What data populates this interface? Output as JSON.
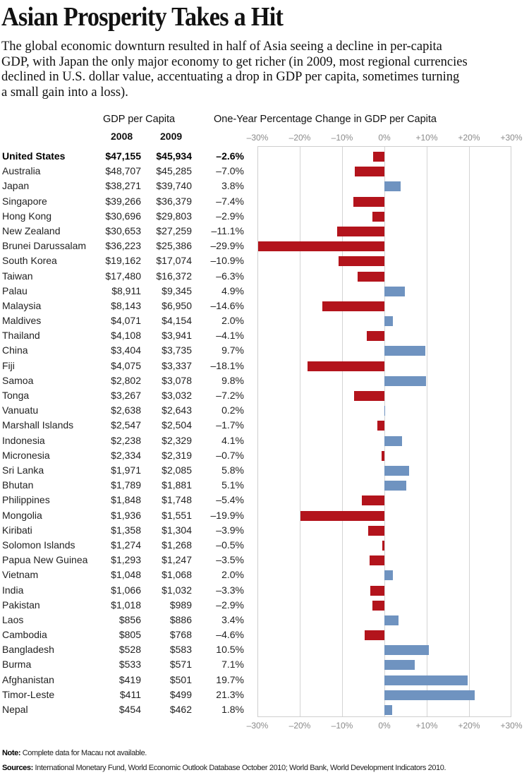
{
  "title": "Asian Prosperity Takes a Hit",
  "subtitle_lines": [
    "The global economic downturn resulted in half of Asia seeing a decline in per-capita",
    "GDP, with Japan the only major economy to get richer (in 2009, most regional currencies",
    "declined in U.S. dollar value, accentuating a drop in GDP per capita, sometimes turning",
    "a small gain into a loss)."
  ],
  "headers": {
    "gdp": "GDP per Capita",
    "y2008": "2008",
    "y2009": "2009",
    "change": "One-Year Percentage Change in GDP per Capita"
  },
  "colors": {
    "negative": "#b3141c",
    "positive": "#6f93c0"
  },
  "chart_data": {
    "type": "bar",
    "orientation": "horizontal",
    "xlim": [
      -30,
      30
    ],
    "xticks": [
      "–30%",
      "–20%",
      "–10%",
      "0%",
      "+10%",
      "+20%",
      "+30%"
    ],
    "grid": true,
    "rows": [
      {
        "country": "United States",
        "gdp2008": "$47,155",
        "gdp2009": "$45,934",
        "change_label": "–2.6%",
        "change": -2.6,
        "bold": true
      },
      {
        "country": "Australia",
        "gdp2008": "$48,707",
        "gdp2009": "$45,285",
        "change_label": "–7.0%",
        "change": -7.0
      },
      {
        "country": "Japan",
        "gdp2008": "$38,271",
        "gdp2009": "$39,740",
        "change_label": "3.8%",
        "change": 3.8
      },
      {
        "country": "Singapore",
        "gdp2008": "$39,266",
        "gdp2009": "$36,379",
        "change_label": "–7.4%",
        "change": -7.4
      },
      {
        "country": "Hong Kong",
        "gdp2008": "$30,696",
        "gdp2009": "$29,803",
        "change_label": "–2.9%",
        "change": -2.9
      },
      {
        "country": "New Zealand",
        "gdp2008": "$30,653",
        "gdp2009": "$27,259",
        "change_label": "–11.1%",
        "change": -11.1
      },
      {
        "country": "Brunei Darussalam",
        "gdp2008": "$36,223",
        "gdp2009": "$25,386",
        "change_label": "–29.9%",
        "change": -29.9
      },
      {
        "country": "South Korea",
        "gdp2008": "$19,162",
        "gdp2009": "$17,074",
        "change_label": "–10.9%",
        "change": -10.9
      },
      {
        "country": "Taiwan",
        "gdp2008": "$17,480",
        "gdp2009": "$16,372",
        "change_label": "–6.3%",
        "change": -6.3
      },
      {
        "country": "Palau",
        "gdp2008": "$8,911",
        "gdp2009": "$9,345",
        "change_label": "4.9%",
        "change": 4.9
      },
      {
        "country": "Malaysia",
        "gdp2008": "$8,143",
        "gdp2009": "$6,950",
        "change_label": "–14.6%",
        "change": -14.6
      },
      {
        "country": "Maldives",
        "gdp2008": "$4,071",
        "gdp2009": "$4,154",
        "change_label": "2.0%",
        "change": 2.0
      },
      {
        "country": "Thailand",
        "gdp2008": "$4,108",
        "gdp2009": "$3,941",
        "change_label": "–4.1%",
        "change": -4.1
      },
      {
        "country": "China",
        "gdp2008": "$3,404",
        "gdp2009": "$3,735",
        "change_label": "9.7%",
        "change": 9.7
      },
      {
        "country": "Fiji",
        "gdp2008": "$4,075",
        "gdp2009": "$3,337",
        "change_label": "–18.1%",
        "change": -18.1
      },
      {
        "country": "Samoa",
        "gdp2008": "$2,802",
        "gdp2009": "$3,078",
        "change_label": "9.8%",
        "change": 9.8
      },
      {
        "country": "Tonga",
        "gdp2008": "$3,267",
        "gdp2009": "$3,032",
        "change_label": "–7.2%",
        "change": -7.2
      },
      {
        "country": "Vanuatu",
        "gdp2008": "$2,638",
        "gdp2009": "$2,643",
        "change_label": "0.2%",
        "change": 0.2
      },
      {
        "country": "Marshall Islands",
        "gdp2008": "$2,547",
        "gdp2009": "$2,504",
        "change_label": "–1.7%",
        "change": -1.7
      },
      {
        "country": "Indonesia",
        "gdp2008": "$2,238",
        "gdp2009": "$2,329",
        "change_label": "4.1%",
        "change": 4.1
      },
      {
        "country": "Micronesia",
        "gdp2008": "$2,334",
        "gdp2009": "$2,319",
        "change_label": "–0.7%",
        "change": -0.7
      },
      {
        "country": "Sri Lanka",
        "gdp2008": "$1,971",
        "gdp2009": "$2,085",
        "change_label": "5.8%",
        "change": 5.8
      },
      {
        "country": "Bhutan",
        "gdp2008": "$1,789",
        "gdp2009": "$1,881",
        "change_label": "5.1%",
        "change": 5.1
      },
      {
        "country": "Philippines",
        "gdp2008": "$1,848",
        "gdp2009": "$1,748",
        "change_label": "–5.4%",
        "change": -5.4
      },
      {
        "country": "Mongolia",
        "gdp2008": "$1,936",
        "gdp2009": "$1,551",
        "change_label": "–19.9%",
        "change": -19.9
      },
      {
        "country": "Kiribati",
        "gdp2008": "$1,358",
        "gdp2009": "$1,304",
        "change_label": "–3.9%",
        "change": -3.9
      },
      {
        "country": "Solomon Islands",
        "gdp2008": "$1,274",
        "gdp2009": "$1,268",
        "change_label": "–0.5%",
        "change": -0.5
      },
      {
        "country": "Papua New Guinea",
        "gdp2008": "$1,293",
        "gdp2009": "$1,247",
        "change_label": "–3.5%",
        "change": -3.5
      },
      {
        "country": "Vietnam",
        "gdp2008": "$1,048",
        "gdp2009": "$1,068",
        "change_label": "2.0%",
        "change": 2.0
      },
      {
        "country": "India",
        "gdp2008": "$1,066",
        "gdp2009": "$1,032",
        "change_label": "–3.3%",
        "change": -3.3
      },
      {
        "country": "Pakistan",
        "gdp2008": "$1,018",
        "gdp2009": "$989",
        "change_label": "–2.9%",
        "change": -2.9
      },
      {
        "country": "Laos",
        "gdp2008": "$856",
        "gdp2009": "$886",
        "change_label": "3.4%",
        "change": 3.4
      },
      {
        "country": "Cambodia",
        "gdp2008": "$805",
        "gdp2009": "$768",
        "change_label": "–4.6%",
        "change": -4.6
      },
      {
        "country": "Bangladesh",
        "gdp2008": "$528",
        "gdp2009": "$583",
        "change_label": "10.5%",
        "change": 10.5
      },
      {
        "country": "Burma",
        "gdp2008": "$533",
        "gdp2009": "$571",
        "change_label": "7.1%",
        "change": 7.1
      },
      {
        "country": "Afghanistan",
        "gdp2008": "$419",
        "gdp2009": "$501",
        "change_label": "19.7%",
        "change": 19.7
      },
      {
        "country": "Timor-Leste",
        "gdp2008": "$411",
        "gdp2009": "$499",
        "change_label": "21.3%",
        "change": 21.3
      },
      {
        "country": "Nepal",
        "gdp2008": "$454",
        "gdp2009": "$462",
        "change_label": "1.8%",
        "change": 1.8
      }
    ]
  },
  "footer": {
    "note_label": "Note:",
    "note_text": " Complete data for Macau not available.",
    "sources_label": "Sources:",
    "sources_text": " International Monetary Fund, World Economic Outlook Database October 2010; World Bank, World Development Indicators 2010."
  }
}
